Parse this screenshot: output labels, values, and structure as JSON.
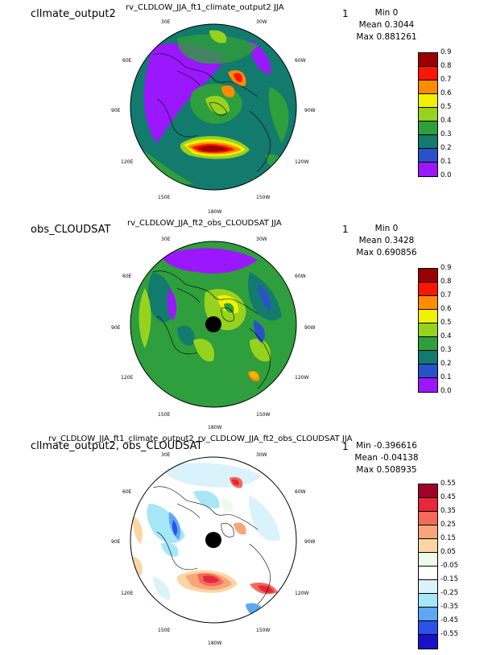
{
  "panels": [
    {
      "case": "cllmate_output2",
      "title": "rv_CLDLOW_JJA_ft1_climate_output2  JJA",
      "page_num": "1",
      "stats": {
        "min": "Min 0",
        "mean": "Mean 0.3044",
        "max": "Max 0.881261"
      },
      "levels": [
        "0.9",
        "0.8",
        "0.7",
        "0.6",
        "0.5",
        "0.4",
        "0.3",
        "0.2",
        "0.1",
        "0.0"
      ],
      "colors": [
        "#9b0000",
        "#ff1500",
        "#ff8c00",
        "#f0f000",
        "#96d21e",
        "#2f9e3c",
        "#137a6e",
        "#2a52c8",
        "#9b17ff"
      ]
    },
    {
      "case": "obs_CLOUDSAT",
      "title": "rv_CLDLOW_JJA_ft2_obs_CLOUDSAT  JJA",
      "page_num": "1",
      "stats": {
        "min": "Min 0",
        "mean": "Mean 0.3428",
        "max": "Max 0.690856"
      },
      "levels": [
        "0.9",
        "0.8",
        "0.7",
        "0.6",
        "0.5",
        "0.4",
        "0.3",
        "0.2",
        "0.1",
        "0.0"
      ],
      "colors": [
        "#9b0000",
        "#ff1500",
        "#ff8c00",
        "#f0f000",
        "#96d21e",
        "#2f9e3c",
        "#137a6e",
        "#2a52c8",
        "#9b17ff"
      ]
    },
    {
      "case": "cllmate_output2, obs_CLOUDSAT",
      "title": "rv_CLDLOW_JJA_ft1_climate_output2_rv_CLDLOW_JJA_ft2_obs_CLOUDSAT  JJA",
      "page_num": "1",
      "stats": {
        "min": "Min -0.396616",
        "mean": "Mean -0.04138",
        "max": "Max 0.508935"
      },
      "levels": [
        "0.55",
        "0.45",
        "0.35",
        "0.25",
        "0.15",
        "0.05",
        "-0.05",
        "-0.15",
        "-0.25",
        "-0.35",
        "-0.45",
        "-0.55"
      ],
      "colors": [
        "#a0002a",
        "#e8273a",
        "#f46a5a",
        "#f7a67a",
        "#fbd6a4",
        "#eefbe8",
        "#ffffff",
        "#d9f2fb",
        "#a5e6f7",
        "#5ea8f2",
        "#2b52e8",
        "#1a10c8"
      ]
    }
  ],
  "lon_labels": {
    "top_left": "30E",
    "top_right": "30W",
    "upper_left": "60E",
    "upper_right": "60W",
    "left": "90E",
    "right": "90W",
    "lower_left": "120E",
    "lower_right": "120W",
    "bottom_left": "150E",
    "bottom_right": "150W",
    "bottom": "180W"
  }
}
